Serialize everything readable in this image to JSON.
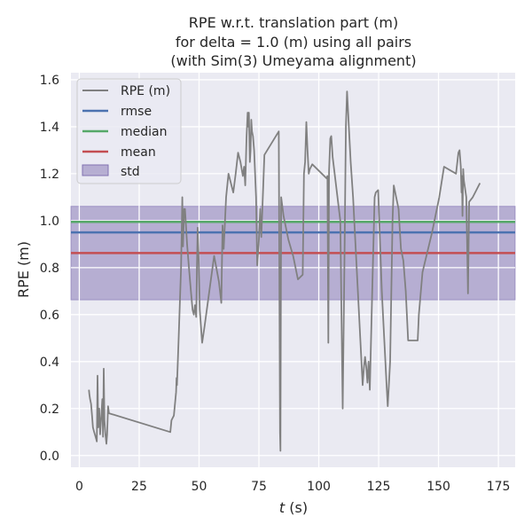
{
  "chart_data": {
    "type": "line",
    "title_lines": [
      "RPE w.r.t. translation part (m)",
      "for delta = 1.0 (m) using all pairs",
      "(with Sim(3) Umeyama alignment)"
    ],
    "xlabel_italic": "t",
    "xlabel_rest": " (s)",
    "ylabel": "RPE (m)",
    "xlim": [
      -3.5,
      182
    ],
    "ylim": [
      -0.05,
      1.63
    ],
    "x_ticks": [
      0,
      25,
      50,
      75,
      100,
      125,
      150,
      175
    ],
    "y_ticks": [
      0.0,
      0.2,
      0.4,
      0.6,
      0.8,
      1.0,
      1.2,
      1.4,
      1.6
    ],
    "x_tick_labels": [
      "0",
      "25",
      "50",
      "75",
      "100",
      "125",
      "150",
      "175"
    ],
    "y_tick_labels": [
      "0.0",
      "0.2",
      "0.4",
      "0.6",
      "0.8",
      "1.0",
      "1.2",
      "1.4",
      "1.6"
    ],
    "grid": true,
    "legend_position": "top-left",
    "colors": {
      "rpe": "#808080",
      "rmse": "#4c72b0",
      "median": "#55a868",
      "mean": "#c44e52",
      "std_fill": "#8172b2",
      "plot_bg": "#eaeaf2",
      "grid": "#ffffff"
    },
    "legend": {
      "rpe": "RPE (m)",
      "rmse": "rmse",
      "median": "median",
      "mean": "mean",
      "std": "std"
    },
    "stats": {
      "rmse": 0.95,
      "median": 0.995,
      "mean": 0.862,
      "std_low": 0.663,
      "std_high": 1.061
    },
    "series": [
      {
        "name": "RPE (m)",
        "points": [
          [
            4.0,
            0.28
          ],
          [
            4.2,
            0.26
          ],
          [
            4.5,
            0.24
          ],
          [
            4.9,
            0.22
          ],
          [
            5.3,
            0.17
          ],
          [
            5.7,
            0.12
          ],
          [
            6.2,
            0.1
          ],
          [
            6.8,
            0.08
          ],
          [
            7.3,
            0.06
          ],
          [
            7.6,
            0.34
          ],
          [
            7.9,
            0.12
          ],
          [
            8.3,
            0.2
          ],
          [
            8.7,
            0.09
          ],
          [
            9.2,
            0.17
          ],
          [
            9.6,
            0.24
          ],
          [
            9.9,
            0.08
          ],
          [
            10.2,
            0.37
          ],
          [
            10.5,
            0.15
          ],
          [
            10.9,
            0.09
          ],
          [
            11.3,
            0.05
          ],
          [
            11.6,
            0.09
          ],
          [
            12.0,
            0.21
          ],
          [
            12.4,
            0.18
          ],
          [
            38.0,
            0.1
          ],
          [
            38.5,
            0.15
          ],
          [
            39.5,
            0.17
          ],
          [
            40.4,
            0.27
          ],
          [
            40.6,
            0.33
          ],
          [
            40.8,
            0.3
          ],
          [
            41.5,
            0.5
          ],
          [
            42.5,
            0.8
          ],
          [
            43.0,
            1.1
          ],
          [
            43.3,
            0.89
          ],
          [
            43.8,
            1.05
          ],
          [
            44.1,
            1.05
          ],
          [
            45.0,
            0.9
          ],
          [
            45.8,
            0.8
          ],
          [
            46.6,
            0.7
          ],
          [
            47.3,
            0.62
          ],
          [
            47.8,
            0.6
          ],
          [
            48.3,
            0.64
          ],
          [
            48.8,
            0.59
          ],
          [
            49.1,
            0.8
          ],
          [
            49.4,
            0.97
          ],
          [
            49.8,
            0.85
          ],
          [
            50.3,
            0.62
          ],
          [
            51.3,
            0.48
          ],
          [
            52.3,
            0.55
          ],
          [
            54.3,
            0.7
          ],
          [
            56.3,
            0.85
          ],
          [
            58.3,
            0.74
          ],
          [
            59.3,
            0.65
          ],
          [
            59.8,
            0.98
          ],
          [
            60.3,
            0.88
          ],
          [
            61.3,
            1.1
          ],
          [
            62.3,
            1.2
          ],
          [
            63.3,
            1.16
          ],
          [
            64.3,
            1.12
          ],
          [
            65.3,
            1.2
          ],
          [
            66.3,
            1.29
          ],
          [
            67.3,
            1.25
          ],
          [
            68.3,
            1.19
          ],
          [
            68.8,
            1.23
          ],
          [
            69.3,
            1.15
          ],
          [
            69.8,
            1.35
          ],
          [
            70.3,
            1.46
          ],
          [
            70.6,
            1.4
          ],
          [
            70.8,
            1.46
          ],
          [
            71.2,
            1.25
          ],
          [
            71.5,
            1.3
          ],
          [
            71.8,
            1.43
          ],
          [
            72.1,
            1.38
          ],
          [
            72.5,
            1.36
          ],
          [
            73.0,
            1.3
          ],
          [
            73.8,
            1.1
          ],
          [
            74.3,
            0.81
          ],
          [
            75.0,
            0.92
          ],
          [
            75.5,
            1.05
          ],
          [
            76.0,
            0.93
          ],
          [
            77.3,
            1.28
          ],
          [
            83.3,
            1.38
          ],
          [
            83.8,
            0.1
          ],
          [
            84.0,
            0.02
          ],
          [
            84.3,
            1.1
          ],
          [
            85.3,
            1.02
          ],
          [
            87.3,
            0.92
          ],
          [
            89.3,
            0.85
          ],
          [
            91.3,
            0.75
          ],
          [
            93.3,
            0.77
          ],
          [
            93.8,
            1.2
          ],
          [
            94.3,
            1.25
          ],
          [
            94.8,
            1.42
          ],
          [
            95.3,
            1.3
          ],
          [
            95.8,
            1.2
          ],
          [
            96.3,
            1.22
          ],
          [
            97.3,
            1.24
          ],
          [
            103.3,
            1.18
          ],
          [
            103.6,
            1.19
          ],
          [
            104.0,
            0.48
          ],
          [
            104.3,
            1.21
          ],
          [
            104.8,
            1.35
          ],
          [
            105.2,
            1.36
          ],
          [
            105.8,
            1.27
          ],
          [
            109.0,
            1.0
          ],
          [
            110.0,
            0.2
          ],
          [
            110.8,
            0.9
          ],
          [
            111.3,
            1.4
          ],
          [
            111.8,
            1.55
          ],
          [
            113.3,
            1.25
          ],
          [
            114.3,
            1.1
          ],
          [
            116.3,
            0.7
          ],
          [
            118.3,
            0.3
          ],
          [
            118.8,
            0.37
          ],
          [
            119.3,
            0.42
          ],
          [
            119.8,
            0.38
          ],
          [
            120.3,
            0.31
          ],
          [
            120.8,
            0.4
          ],
          [
            121.3,
            0.28
          ],
          [
            122.3,
            0.7
          ],
          [
            123.3,
            1.1
          ],
          [
            123.8,
            1.12
          ],
          [
            124.8,
            1.13
          ],
          [
            126.3,
            0.7
          ],
          [
            127.3,
            0.5
          ],
          [
            128.3,
            0.3
          ],
          [
            128.8,
            0.21
          ],
          [
            129.8,
            0.4
          ],
          [
            130.8,
            1.0
          ],
          [
            131.3,
            1.15
          ],
          [
            132.3,
            1.1
          ],
          [
            133.3,
            1.05
          ],
          [
            134.3,
            0.88
          ],
          [
            135.3,
            0.83
          ],
          [
            136.3,
            0.7
          ],
          [
            137.3,
            0.49
          ],
          [
            141.3,
            0.49
          ],
          [
            141.8,
            0.6
          ],
          [
            143.3,
            0.78
          ],
          [
            147.3,
            0.95
          ],
          [
            150.3,
            1.1
          ],
          [
            152.3,
            1.23
          ],
          [
            157.3,
            1.2
          ],
          [
            158.3,
            1.29
          ],
          [
            158.8,
            1.3
          ],
          [
            159.3,
            1.23
          ],
          [
            159.6,
            1.12
          ],
          [
            159.8,
            1.19
          ],
          [
            160.0,
            1.02
          ],
          [
            160.3,
            1.22
          ],
          [
            160.6,
            1.17
          ],
          [
            160.9,
            1.15
          ],
          [
            161.6,
            1.1
          ],
          [
            162.3,
            0.69
          ],
          [
            162.8,
            1.08
          ],
          [
            164.3,
            1.1
          ],
          [
            167.3,
            1.16
          ]
        ]
      }
    ]
  }
}
